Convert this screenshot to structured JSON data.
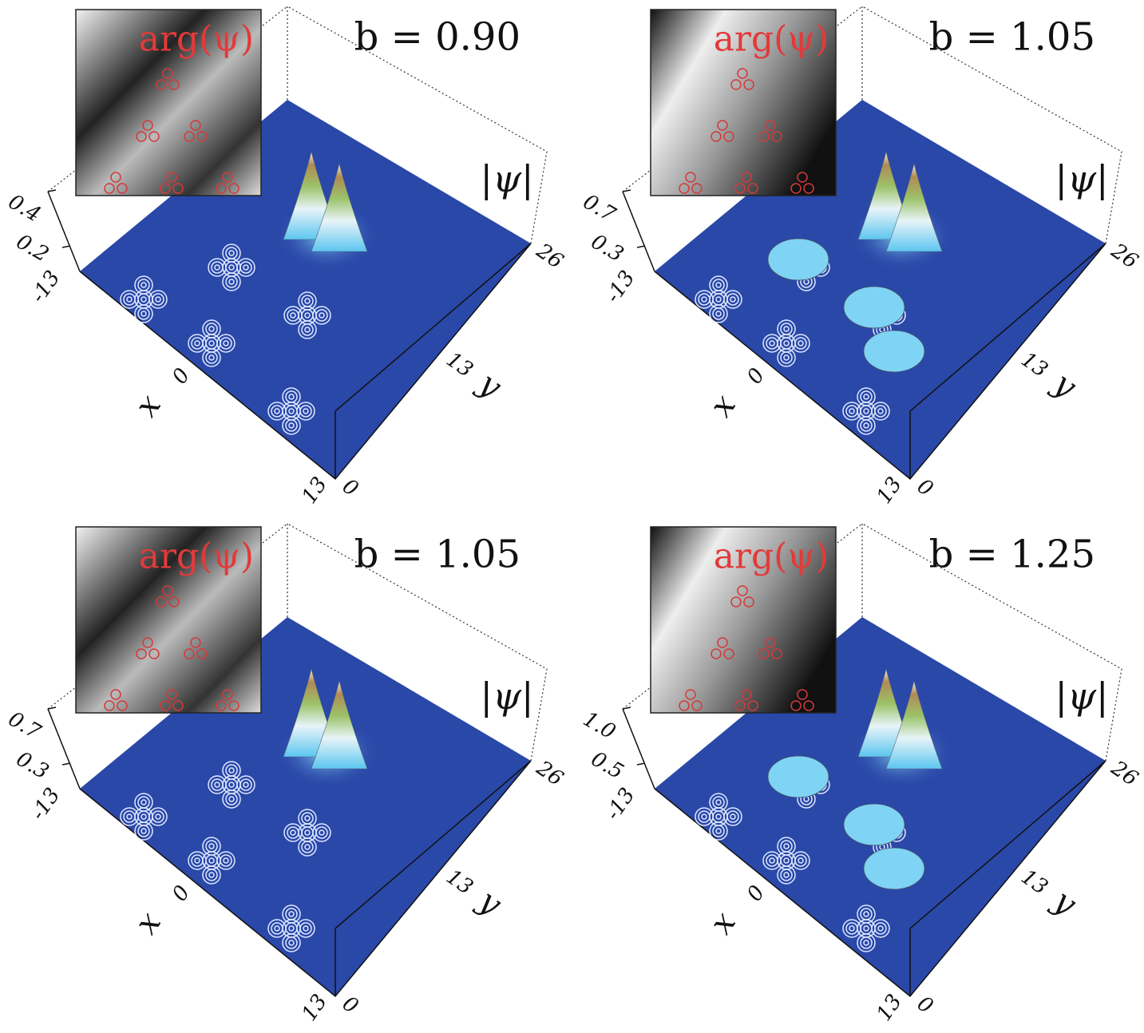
{
  "panels": [
    {
      "title": "b = 0.90",
      "inset_label": "arg(ψ)",
      "z_label": "|ψ|",
      "z_ticks": [
        "0.4",
        "0.2"
      ],
      "x_label": "x",
      "x_ticks": [
        "-13",
        "0",
        "13"
      ],
      "y_label": "y",
      "y_ticks": [
        "0",
        "13",
        "26"
      ]
    },
    {
      "title": "b = 1.05",
      "inset_label": "arg(ψ)",
      "z_label": "|ψ|",
      "z_ticks": [
        "0.7",
        "0.3"
      ],
      "x_label": "x",
      "x_ticks": [
        "-13",
        "0",
        "13"
      ],
      "y_label": "y",
      "y_ticks": [
        "0",
        "13",
        "26"
      ]
    },
    {
      "title": "b = 1.05",
      "inset_label": "arg(ψ)",
      "z_label": "|ψ|",
      "z_ticks": [
        "0.7",
        "0.3"
      ],
      "x_label": "x",
      "x_ticks": [
        "-13",
        "0",
        "13"
      ],
      "y_label": "y",
      "y_ticks": [
        "0",
        "13",
        "26"
      ]
    },
    {
      "title": "b = 1.25",
      "inset_label": "arg(ψ)",
      "z_label": "|ψ|",
      "z_ticks": [
        "1.0",
        "0.5"
      ],
      "x_label": "x",
      "x_ticks": [
        "-13",
        "0",
        "13"
      ],
      "y_label": "y",
      "y_ticks": [
        "0",
        "13",
        "26"
      ]
    }
  ]
}
